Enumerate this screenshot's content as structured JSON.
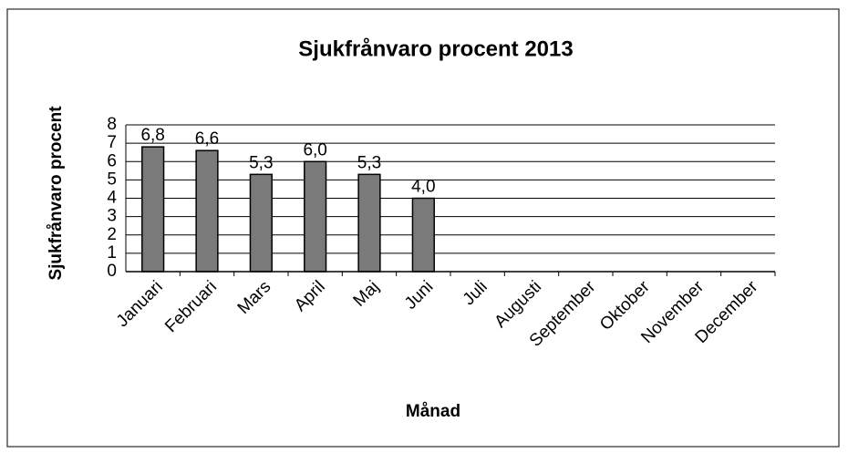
{
  "chart_data": {
    "type": "bar",
    "title": "Sjukfrånvaro procent 2013",
    "x_label": "Månad",
    "y_label": "Sjukfrånvaro procent",
    "categories": [
      "Januari",
      "Februari",
      "Mars",
      "April",
      "Maj",
      "Juni",
      "Juli",
      "Augusti",
      "September",
      "Oktober",
      "November",
      "December"
    ],
    "values": [
      6.8,
      6.6,
      5.3,
      6.0,
      5.3,
      4.0,
      null,
      null,
      null,
      null,
      null,
      null
    ],
    "value_labels": [
      "6,8",
      "6,6",
      "5,3",
      "6,0",
      "5,3",
      "4,0",
      null,
      null,
      null,
      null,
      null,
      null
    ],
    "color": "#7a7a7a",
    "ylim": [
      0,
      8
    ],
    "yticks": [
      0,
      1,
      2,
      3,
      4,
      5,
      6,
      7,
      8
    ],
    "grid": true
  }
}
